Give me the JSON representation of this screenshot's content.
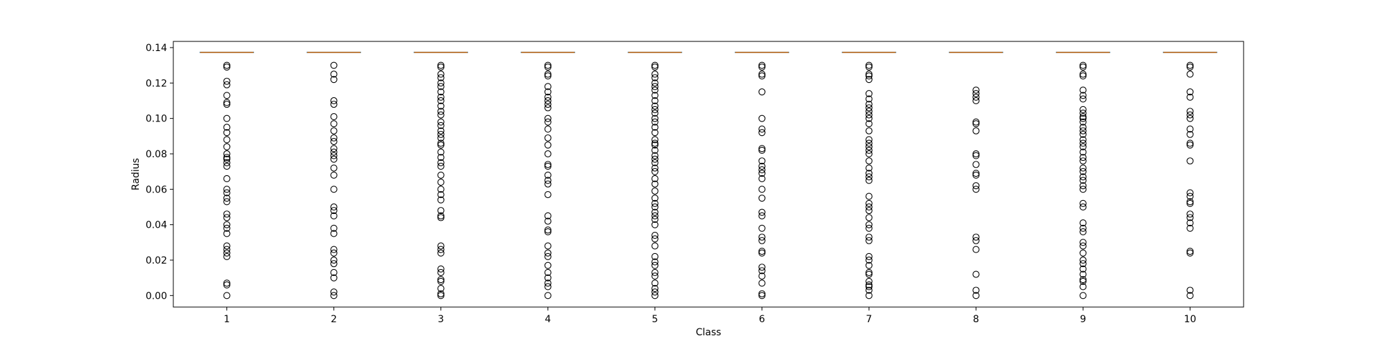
{
  "chart_data": {
    "type": "box",
    "title": "",
    "xlabel": "Class",
    "ylabel": "Radius",
    "categories": [
      "1",
      "2",
      "3",
      "4",
      "5",
      "6",
      "7",
      "8",
      "9",
      "10"
    ],
    "ylim": [
      -0.0065,
      0.1435
    ],
    "xlim": [
      0.5,
      10.5
    ],
    "yticks": [
      0.0,
      0.02,
      0.04,
      0.06,
      0.08,
      0.1,
      0.12,
      0.14
    ],
    "ytick_labels": [
      "0.00",
      "0.02",
      "0.04",
      "0.06",
      "0.08",
      "0.10",
      "0.12",
      "0.14"
    ],
    "grid": false,
    "box_summary": [
      {
        "q1": 0.1373,
        "median": 0.1373,
        "q3": 0.1373
      },
      {
        "q1": 0.1373,
        "median": 0.1373,
        "q3": 0.1373
      },
      {
        "q1": 0.1373,
        "median": 0.1373,
        "q3": 0.1373
      },
      {
        "q1": 0.1373,
        "median": 0.1373,
        "q3": 0.1373
      },
      {
        "q1": 0.1373,
        "median": 0.1373,
        "q3": 0.1373
      },
      {
        "q1": 0.1373,
        "median": 0.1373,
        "q3": 0.1373
      },
      {
        "q1": 0.1373,
        "median": 0.1373,
        "q3": 0.1373
      },
      {
        "q1": 0.1373,
        "median": 0.1373,
        "q3": 0.1373
      },
      {
        "q1": 0.1373,
        "median": 0.1373,
        "q3": 0.1373
      },
      {
        "q1": 0.1373,
        "median": 0.1373,
        "q3": 0.1373
      }
    ],
    "outliers": [
      [
        0.13,
        0.129,
        0.121,
        0.119,
        0.113,
        0.109,
        0.108,
        0.1,
        0.095,
        0.092,
        0.088,
        0.084,
        0.08,
        0.078,
        0.077,
        0.075,
        0.073,
        0.066,
        0.06,
        0.058,
        0.055,
        0.053,
        0.046,
        0.044,
        0.04,
        0.038,
        0.035,
        0.028,
        0.026,
        0.024,
        0.022,
        0.007,
        0.006,
        0.0
      ],
      [
        0.13,
        0.125,
        0.122,
        0.11,
        0.108,
        0.101,
        0.097,
        0.093,
        0.089,
        0.087,
        0.083,
        0.081,
        0.079,
        0.077,
        0.072,
        0.068,
        0.06,
        0.05,
        0.048,
        0.045,
        0.038,
        0.035,
        0.026,
        0.024,
        0.02,
        0.018,
        0.013,
        0.01,
        0.002,
        0.0
      ],
      [
        0.13,
        0.129,
        0.125,
        0.123,
        0.12,
        0.118,
        0.115,
        0.112,
        0.11,
        0.107,
        0.104,
        0.102,
        0.098,
        0.096,
        0.093,
        0.091,
        0.089,
        0.086,
        0.085,
        0.081,
        0.078,
        0.075,
        0.073,
        0.068,
        0.064,
        0.06,
        0.057,
        0.054,
        0.048,
        0.045,
        0.044,
        0.028,
        0.026,
        0.024,
        0.015,
        0.013,
        0.009,
        0.008,
        0.004,
        0.001,
        0.0
      ],
      [
        0.13,
        0.129,
        0.125,
        0.124,
        0.118,
        0.115,
        0.112,
        0.11,
        0.108,
        0.106,
        0.1,
        0.098,
        0.094,
        0.089,
        0.085,
        0.08,
        0.074,
        0.073,
        0.068,
        0.065,
        0.063,
        0.057,
        0.045,
        0.042,
        0.037,
        0.036,
        0.028,
        0.024,
        0.022,
        0.017,
        0.013,
        0.01,
        0.007,
        0.005,
        0.0
      ],
      [
        0.13,
        0.129,
        0.125,
        0.123,
        0.12,
        0.118,
        0.116,
        0.113,
        0.11,
        0.107,
        0.105,
        0.103,
        0.1,
        0.098,
        0.095,
        0.092,
        0.088,
        0.086,
        0.085,
        0.082,
        0.079,
        0.077,
        0.075,
        0.072,
        0.07,
        0.066,
        0.063,
        0.059,
        0.055,
        0.052,
        0.05,
        0.047,
        0.045,
        0.043,
        0.04,
        0.034,
        0.032,
        0.028,
        0.022,
        0.019,
        0.017,
        0.013,
        0.011,
        0.007,
        0.004,
        0.002,
        0.0
      ],
      [
        0.13,
        0.129,
        0.125,
        0.124,
        0.115,
        0.1,
        0.094,
        0.092,
        0.083,
        0.082,
        0.076,
        0.073,
        0.071,
        0.069,
        0.066,
        0.06,
        0.055,
        0.047,
        0.045,
        0.038,
        0.033,
        0.031,
        0.025,
        0.024,
        0.016,
        0.014,
        0.011,
        0.007,
        0.001,
        0.0
      ],
      [
        0.13,
        0.129,
        0.125,
        0.124,
        0.122,
        0.114,
        0.111,
        0.108,
        0.106,
        0.104,
        0.102,
        0.1,
        0.097,
        0.093,
        0.088,
        0.086,
        0.084,
        0.082,
        0.08,
        0.076,
        0.072,
        0.069,
        0.067,
        0.065,
        0.056,
        0.052,
        0.05,
        0.048,
        0.044,
        0.04,
        0.038,
        0.033,
        0.031,
        0.022,
        0.02,
        0.017,
        0.013,
        0.012,
        0.008,
        0.006,
        0.005,
        0.003,
        0.0
      ],
      [
        0.116,
        0.114,
        0.112,
        0.11,
        0.098,
        0.097,
        0.093,
        0.08,
        0.079,
        0.074,
        0.069,
        0.068,
        0.062,
        0.06,
        0.033,
        0.031,
        0.026,
        0.012,
        0.003,
        0.0
      ],
      [
        0.13,
        0.129,
        0.125,
        0.124,
        0.116,
        0.113,
        0.111,
        0.105,
        0.103,
        0.101,
        0.1,
        0.098,
        0.095,
        0.093,
        0.091,
        0.088,
        0.086,
        0.084,
        0.081,
        0.078,
        0.076,
        0.072,
        0.07,
        0.067,
        0.065,
        0.062,
        0.06,
        0.052,
        0.05,
        0.041,
        0.038,
        0.036,
        0.03,
        0.028,
        0.024,
        0.02,
        0.018,
        0.015,
        0.012,
        0.009,
        0.008,
        0.005,
        0.0
      ],
      [
        0.13,
        0.129,
        0.125,
        0.115,
        0.112,
        0.104,
        0.102,
        0.1,
        0.094,
        0.091,
        0.086,
        0.085,
        0.076,
        0.058,
        0.056,
        0.053,
        0.052,
        0.046,
        0.044,
        0.041,
        0.038,
        0.025,
        0.024,
        0.003,
        0.0
      ]
    ],
    "box_color": "#1f77b4",
    "median_color": "#ff7f0e",
    "outlier_marker": "circle",
    "outlier_edge_color": "#000000"
  }
}
